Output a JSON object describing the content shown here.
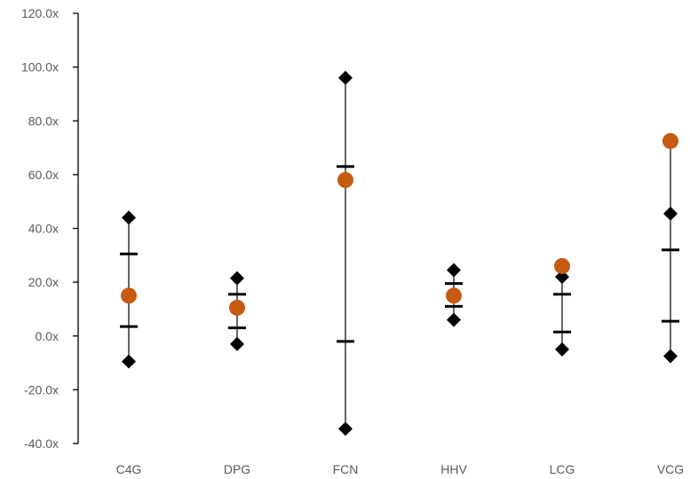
{
  "chart_data": {
    "type": "scatter",
    "title": "",
    "xlabel": "",
    "ylabel": "",
    "categories": [
      "C4G",
      "DPG",
      "FCN",
      "HHV",
      "LCG",
      "VCG"
    ],
    "ylim": [
      -40,
      120
    ],
    "yticks": [
      -40,
      -20,
      0,
      20,
      40,
      60,
      80,
      100,
      120
    ],
    "ytick_labels": [
      "-40.0x",
      "-20.0x",
      "0.0x",
      "20.0x",
      "40.0x",
      "60.0x",
      "80.0x",
      "100.0x",
      "120.0x"
    ],
    "grid": false,
    "legend": "none",
    "series": [
      {
        "values": [
          44,
          21.5,
          96,
          24.5,
          22,
          45.5
        ],
        "marker": "diamond",
        "color": "#000000"
      },
      {
        "values": [
          -9.5,
          -3,
          -34.5,
          6,
          -5,
          -7.5
        ],
        "marker": "diamond",
        "color": "#000000"
      },
      {
        "values": [
          30.5,
          15.5,
          63,
          19.5,
          15.5,
          32
        ],
        "marker": "dash",
        "color": "#000000"
      },
      {
        "values": [
          3.5,
          3,
          -2,
          11,
          1.5,
          5.5
        ],
        "marker": "dash",
        "color": "#000000"
      },
      {
        "values": [
          15,
          10.5,
          58,
          15,
          26,
          72.5
        ],
        "marker": "circle",
        "color": "#C55A11"
      }
    ]
  }
}
